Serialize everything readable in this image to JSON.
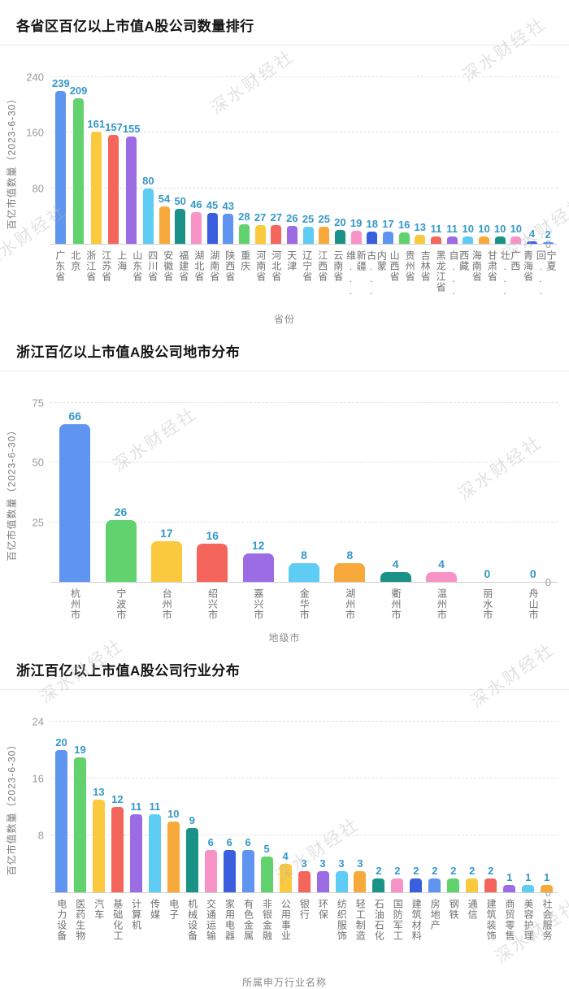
{
  "page": {
    "watermark_text": "深水财经社"
  },
  "palette": [
    "#5F94F0",
    "#62D26F",
    "#FBC93D",
    "#F4655B",
    "#9C6CE4",
    "#5FCDF3",
    "#F7AA3B",
    "#1B9287",
    "#F893C7",
    "#3A5FDE"
  ],
  "style": {
    "value_label_color": "#3598c8",
    "tick_color": "#9b9b9b",
    "xlabel_color": "#707070",
    "axis_name_color": "#8a8a8a",
    "title_color": "#141414"
  },
  "chart_data": [
    {
      "type": "bar",
      "title": "各省区百亿以上市值A股公司数量排行",
      "ylabel": "百亿市值数量（2023-6-30）",
      "xlabel": "省份",
      "ylim": [
        0,
        240
      ],
      "yticks": [
        0,
        80,
        160,
        240
      ],
      "grid": "dashed-horizontal",
      "legend": "none",
      "categories": [
        "广东省",
        "北京",
        "浙江省",
        "江苏省",
        "上海",
        "山东省",
        "四川省",
        "安徽省",
        "福建省",
        "湖北省",
        "湖南省",
        "陕西省",
        "重庆",
        "河南省",
        "河北省",
        "天津",
        "辽宁省",
        "江西省",
        "云南省",
        "新疆维...",
        "内蒙古...",
        "山西省",
        "贵州省",
        "吉林省",
        "黑龙江省",
        "西藏自...",
        "海南省",
        "甘肃省",
        "广西壮...",
        "青海省",
        "宁夏回..."
      ],
      "values": [
        239,
        209,
        161,
        157,
        155,
        80,
        54,
        50,
        46,
        45,
        43,
        28,
        27,
        27,
        26,
        25,
        25,
        20,
        19,
        18,
        17,
        16,
        13,
        11,
        11,
        10,
        10,
        10,
        10,
        4,
        2
      ]
    },
    {
      "type": "bar",
      "title": "浙江百亿以上市值A股公司地市分布",
      "ylabel": "百亿市值数量（2023-6-30）",
      "xlabel": "地级市",
      "ylim": [
        0,
        75
      ],
      "yticks": [
        0,
        25,
        50,
        75
      ],
      "grid": "dashed-horizontal",
      "legend": "none",
      "categories": [
        "杭州市",
        "宁波市",
        "台州市",
        "绍兴市",
        "嘉兴市",
        "金华市",
        "湖州市",
        "衢州市",
        "温州市",
        "丽水市",
        "舟山市"
      ],
      "values": [
        66,
        26,
        17,
        16,
        12,
        8,
        8,
        4,
        4,
        0,
        0
      ]
    },
    {
      "type": "bar",
      "title": "浙江百亿以上市值A股公司行业分布",
      "ylabel": "百亿市值数量（2023-6-30）",
      "xlabel": "所属申万行业名称",
      "ylim": [
        0,
        24
      ],
      "yticks": [
        0,
        8,
        16,
        24
      ],
      "grid": "dashed-horizontal",
      "legend": "none",
      "categories": [
        "电力设备",
        "医药生物",
        "汽车",
        "基础化工",
        "计算机",
        "传媒",
        "电子",
        "机械设备",
        "交通运输",
        "家用电器",
        "有色金属",
        "非银金融",
        "公用事业",
        "银行",
        "环保",
        "纺织服饰",
        "轻工制造",
        "石油石化",
        "国防军工",
        "建筑材料",
        "房地产",
        "钢铁",
        "通信",
        "建筑装饰",
        "商贸零售",
        "美容护理",
        "社会服务"
      ],
      "values": [
        20,
        19,
        13,
        12,
        11,
        11,
        10,
        9,
        6,
        6,
        6,
        5,
        4,
        3,
        3,
        3,
        3,
        2,
        2,
        2,
        2,
        2,
        2,
        2,
        1,
        1,
        1
      ]
    }
  ]
}
